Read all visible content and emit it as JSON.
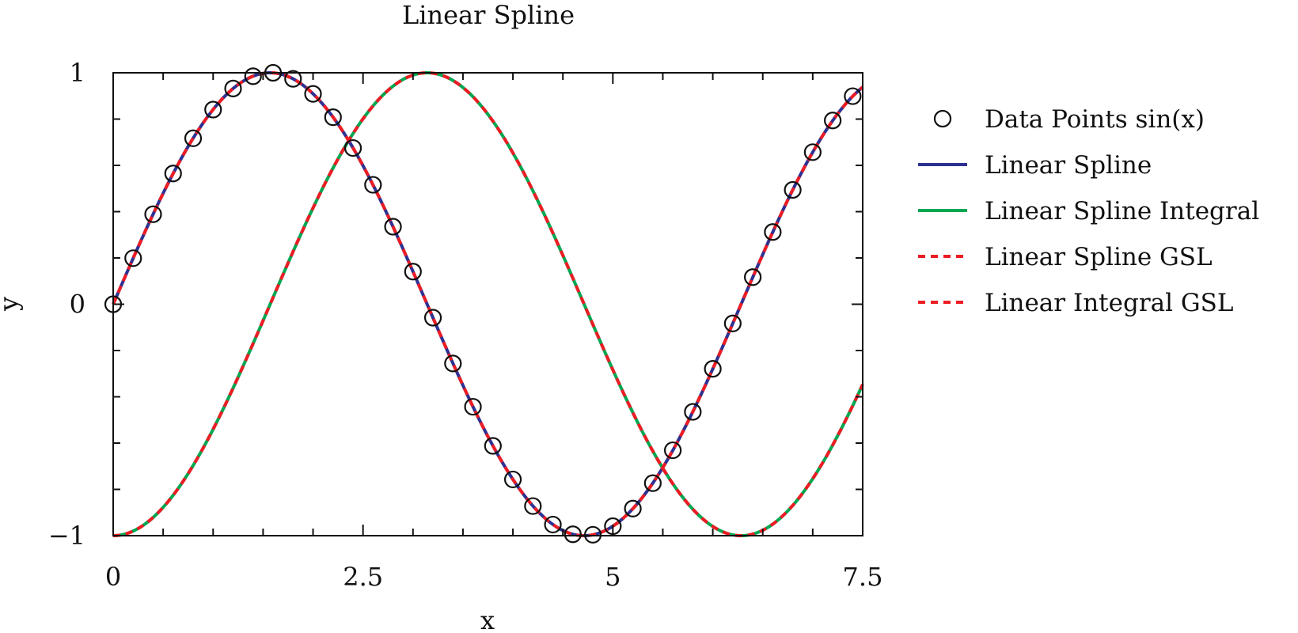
{
  "chart_data": {
    "type": "line",
    "title": "Linear Spline",
    "xlabel": "x",
    "ylabel": "y",
    "xlim": [
      0,
      7.5
    ],
    "ylim": [
      -1,
      1
    ],
    "xticks": [
      0,
      2.5,
      5,
      7.5
    ],
    "xtick_labels": [
      "0",
      "2.5",
      "5",
      "7.5"
    ],
    "yticks": [
      -1,
      0,
      1
    ],
    "ytick_labels": [
      "−1",
      "0",
      "1"
    ],
    "legend_position": "right, outside plot",
    "data_points": {
      "name": "Data Points sin(x)",
      "marker": "circle",
      "color": "#111111",
      "x": [
        0,
        0.2,
        0.4,
        0.6,
        0.8,
        1.0,
        1.2,
        1.4,
        1.6,
        1.8,
        2.0,
        2.2,
        2.4,
        2.6,
        2.8,
        3.0,
        3.2,
        3.4,
        3.6,
        3.8,
        4.0,
        4.2,
        4.4,
        4.6,
        4.8,
        5.0,
        5.2,
        5.4,
        5.6,
        5.8,
        6.0,
        6.2,
        6.4,
        6.6,
        6.8,
        7.0,
        7.2,
        7.4
      ],
      "y": [
        0.0,
        0.199,
        0.389,
        0.565,
        0.717,
        0.841,
        0.932,
        0.985,
        1.0,
        0.974,
        0.909,
        0.808,
        0.675,
        0.516,
        0.335,
        0.141,
        -0.058,
        -0.256,
        -0.443,
        -0.612,
        -0.757,
        -0.872,
        -0.952,
        -0.994,
        -0.996,
        -0.959,
        -0.883,
        -0.773,
        -0.631,
        -0.465,
        -0.279,
        -0.083,
        0.117,
        0.312,
        0.494,
        0.657,
        0.794,
        0.899
      ]
    },
    "series": [
      {
        "name": "Linear Spline",
        "color": "#2e3192",
        "style": "solid",
        "function": "sin"
      },
      {
        "name": "Linear Spline Integral",
        "color": "#00a651",
        "style": "solid",
        "function": "-cos"
      },
      {
        "name": "Linear Spline GSL",
        "color": "#ed1c24",
        "style": "dashed",
        "function": "sin"
      },
      {
        "name": "Linear Integral GSL",
        "color": "#ed1c24",
        "style": "dashed",
        "function": "-cos"
      }
    ]
  }
}
